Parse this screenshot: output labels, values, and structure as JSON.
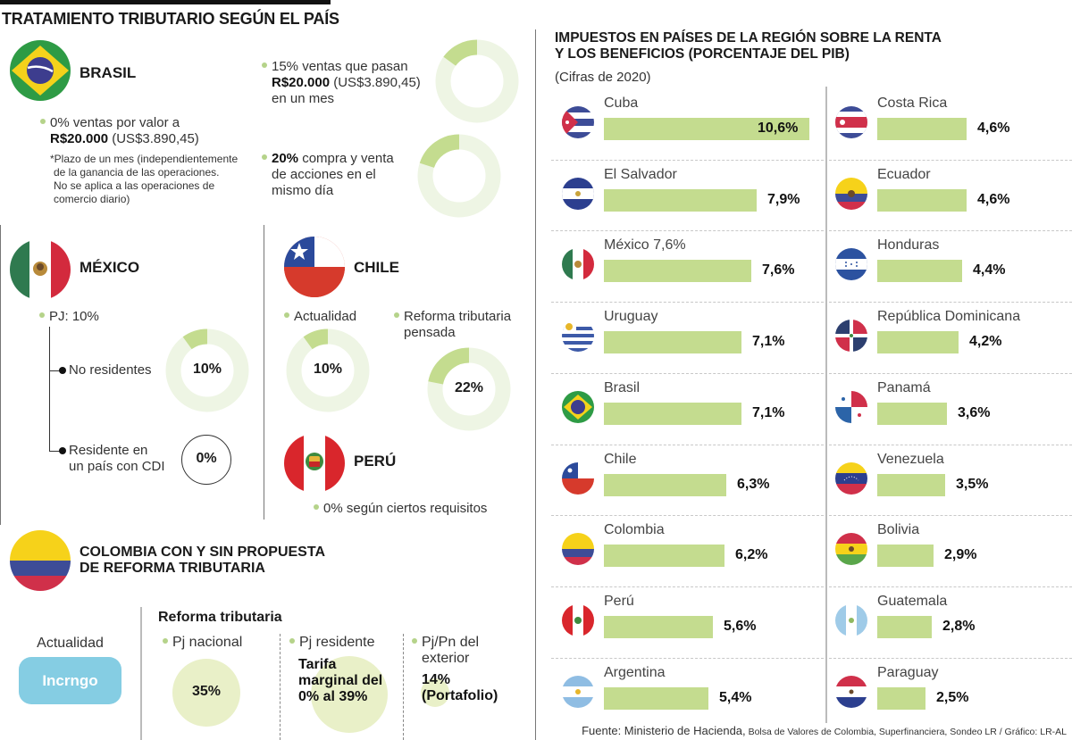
{
  "left": {
    "title": "TRATAMIENTO TRIBUTARIO SEGÚN EL PAÍS",
    "brasil": {
      "name": "BRASIL",
      "item1_pct": "0% ventas por valor a",
      "item1_bold": "R$20.000",
      "item1_usd": " (US$3.890,45)",
      "note_lines": [
        "*Plazo de un mes (independientemente",
        "de la ganancia de las operaciones.",
        "No se aplica a las operaciones de",
        "comercio diario)"
      ],
      "item2_line1": "15% ventas que pasan",
      "item2_bold": "R$20.000",
      "item2_usd": " (US$3.890,45)",
      "item2_line3": "en un mes",
      "item2_value": 15,
      "item3_bold": "20%",
      "item3_rest1": " compra y venta",
      "item3_line2": "de acciones en el",
      "item3_line3": "mismo día",
      "item3_value": 20
    },
    "mexico": {
      "name": "MÉXICO",
      "pj": "PJ: 10%",
      "no_residentes": "No residentes",
      "no_residentes_value": 10,
      "no_residentes_label": "10%",
      "residente_line1": "Residente en",
      "residente_line2": "un país con CDI",
      "residente_label": "0%"
    },
    "chile": {
      "name": "CHILE",
      "actualidad": "Actualidad",
      "actualidad_value": 10,
      "actualidad_label": "10%",
      "reforma_line1": "Reforma tributaria",
      "reforma_line2": "pensada",
      "reforma_value": 22,
      "reforma_label": "22%"
    },
    "peru": {
      "name": "PERÚ",
      "note": "0% según ciertos requisitos"
    },
    "colombia": {
      "title_line1": "COLOMBIA CON Y SIN PROPUESTA",
      "title_line2": "DE REFORMA TRIBUTARIA",
      "actualidad": "Actualidad",
      "actualidad_badge": "Incrngo",
      "reforma_heading": "Reforma tributaria",
      "pj_nacional": "Pj nacional",
      "pj_nacional_value": "35%",
      "pj_residente": "Pj residente",
      "pj_residente_value_lines": [
        "Tarifa",
        "marginal del",
        "0% al 39%"
      ],
      "pj_exterior_lines": [
        "Pj/Pn del",
        "exterior"
      ],
      "pj_exterior_value_lines": [
        "14%",
        "(Portafolio)"
      ]
    }
  },
  "colors": {
    "bar": "#c4dc8f",
    "donut_fill": "#c4dc8f",
    "donut_track": "#eef5e4",
    "bullet": "#b5d38a",
    "badge": "#85cde3",
    "circle_fill": "#e9f0c8"
  },
  "chart_data": {
    "type": "bar",
    "title": "IMPUESTOS EN PAÍSES DE LA REGIÓN SOBRE LA RENTA Y LOS BENEFICIOS (PORCENTAJE DEL PIB)",
    "title_lines": [
      "IMPUESTOS EN PAÍSES DE LA REGIÓN SOBRE LA RENTA",
      "Y LOS BENEFICIOS (PORCENTAJE DEL PIB)"
    ],
    "subtitle": "(Cifras de 2020)",
    "xlabel": "",
    "ylabel": "% del PIB",
    "xlim": [
      0,
      10.6
    ],
    "orientation": "horizontal",
    "columns": [
      [
        {
          "country": "Cuba",
          "label": "Cuba",
          "value": 10.6,
          "display": "10,6%",
          "flag": "cuba"
        },
        {
          "country": "El Salvador",
          "label": "El Salvador",
          "value": 7.9,
          "display": "7,9%",
          "flag": "el-salvador"
        },
        {
          "country": "México",
          "label": "México 7,6%",
          "value": 7.6,
          "display": "7,6%",
          "flag": "mexico"
        },
        {
          "country": "Uruguay",
          "label": "Uruguay",
          "value": 7.1,
          "display": "7,1%",
          "flag": "uruguay"
        },
        {
          "country": "Brasil",
          "label": "Brasil",
          "value": 7.1,
          "display": "7,1%",
          "flag": "brasil"
        },
        {
          "country": "Chile",
          "label": "Chile",
          "value": 6.3,
          "display": "6,3%",
          "flag": "chile"
        },
        {
          "country": "Colombia",
          "label": "Colombia",
          "value": 6.2,
          "display": "6,2%",
          "flag": "colombia"
        },
        {
          "country": "Perú",
          "label": "Perú",
          "value": 5.6,
          "display": "5,6%",
          "flag": "peru"
        },
        {
          "country": "Argentina",
          "label": "Argentina",
          "value": 5.4,
          "display": "5,4%",
          "flag": "argentina"
        }
      ],
      [
        {
          "country": "Costa Rica",
          "label": "Costa Rica",
          "value": 4.6,
          "display": "4,6%",
          "flag": "costa-rica"
        },
        {
          "country": "Ecuador",
          "label": "Ecuador",
          "value": 4.6,
          "display": "4,6%",
          "flag": "ecuador"
        },
        {
          "country": "Honduras",
          "label": "Honduras",
          "value": 4.4,
          "display": "4,4%",
          "flag": "honduras"
        },
        {
          "country": "República Dominicana",
          "label": "República Dominicana",
          "value": 4.2,
          "display": "4,2%",
          "flag": "dominicana"
        },
        {
          "country": "Panamá",
          "label": "Panamá",
          "value": 3.6,
          "display": "3,6%",
          "flag": "panama"
        },
        {
          "country": "Venezuela",
          "label": "Venezuela",
          "value": 3.5,
          "display": "3,5%",
          "flag": "venezuela"
        },
        {
          "country": "Bolivia",
          "label": "Bolivia",
          "value": 2.9,
          "display": "2,9%",
          "flag": "bolivia"
        },
        {
          "country": "Guatemala",
          "label": "Guatemala",
          "value": 2.8,
          "display": "2,8%",
          "flag": "guatemala"
        },
        {
          "country": "Paraguay",
          "label": "Paraguay",
          "value": 2.5,
          "display": "2,5%",
          "flag": "paraguay"
        }
      ]
    ],
    "grid": false,
    "legend": "none"
  },
  "footer": {
    "lead": "Fuente: Ministerio de Hacienda,",
    "rest": " Bolsa de Valores de Colombia, Superfinanciera, Sondeo LR / Gráfico: LR-AL"
  }
}
